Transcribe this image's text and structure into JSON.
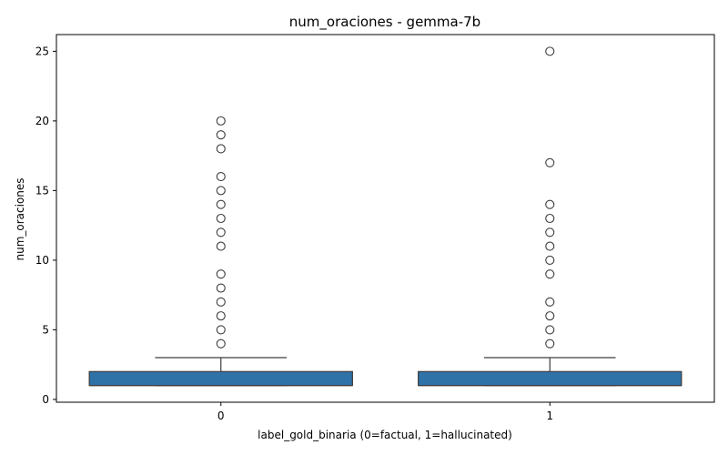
{
  "chart_data": {
    "type": "box",
    "title": "num_oraciones - gemma-7b",
    "xlabel": "label_gold_binaria (0=factual, 1=hallucinated)",
    "ylabel": "num_oraciones",
    "ylim": [
      -0.2,
      26.2
    ],
    "yticks": [
      0,
      5,
      10,
      15,
      20,
      25
    ],
    "grid": false,
    "box_color": "#2f72a8",
    "categories": [
      "0",
      "1"
    ],
    "boxes": [
      {
        "category": "0",
        "whisker_low": 1,
        "q1": 1,
        "median": 1,
        "q3": 2,
        "whisker_high": 3,
        "outliers": [
          4,
          5,
          6,
          7,
          8,
          9,
          11,
          12,
          13,
          14,
          15,
          16,
          18,
          19,
          20
        ]
      },
      {
        "category": "1",
        "whisker_low": 1,
        "q1": 1,
        "median": 1,
        "q3": 2,
        "whisker_high": 3,
        "outliers": [
          4,
          5,
          6,
          7,
          9,
          10,
          11,
          12,
          13,
          14,
          17,
          25
        ]
      }
    ]
  }
}
